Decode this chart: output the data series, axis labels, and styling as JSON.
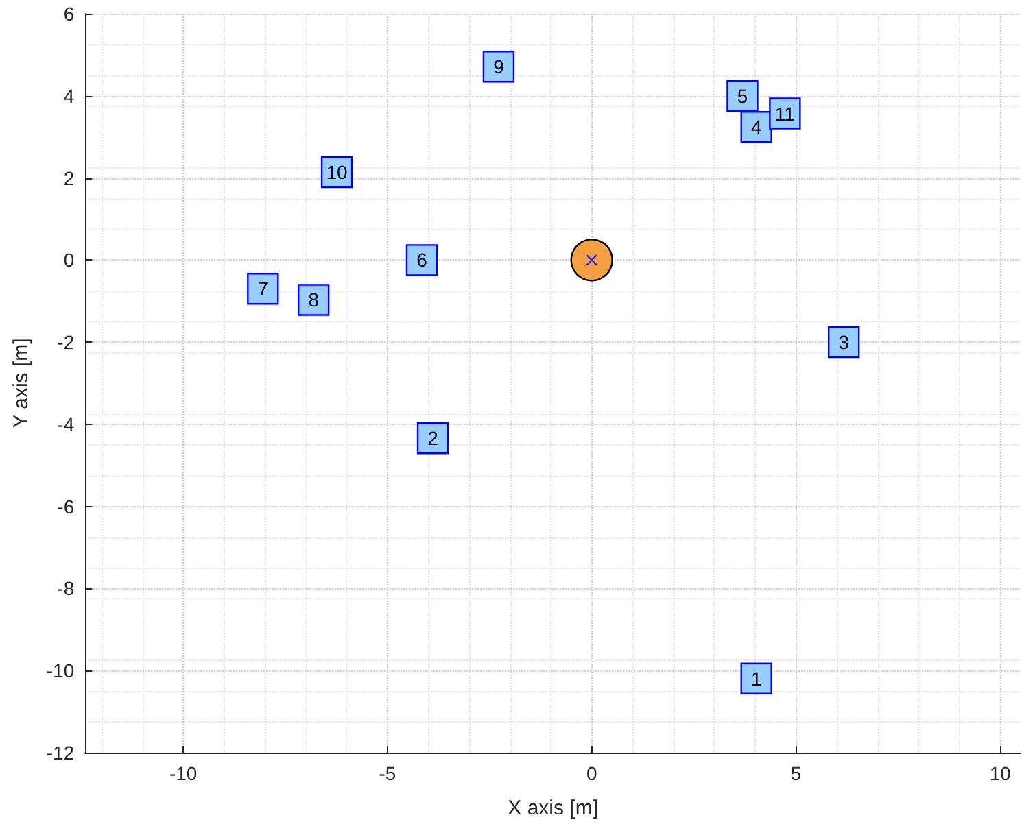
{
  "chart_data": {
    "type": "scatter",
    "xlabel": "X axis [m]",
    "ylabel": "Y axis [m]",
    "xlim": [
      -12.4,
      10.5
    ],
    "xticks": [
      -10,
      -5,
      0,
      5,
      10
    ],
    "ylim": [
      -12,
      6
    ],
    "yticks": [
      -12,
      -10,
      -8,
      -6,
      -4,
      -2,
      0,
      2,
      4,
      6
    ],
    "grid": true,
    "series": [
      {
        "color": "#99ccff",
        "marker": "square",
        "x": [
          4.03,
          -3.89,
          6.17,
          4.03,
          3.69,
          -4.16,
          -8.05,
          -6.81,
          -2.28,
          -6.24,
          4.73
        ],
        "values": [
          -10.19,
          -4.34,
          -2.0,
          3.24,
          4.0,
          0.0,
          -0.7,
          -0.97,
          4.71,
          2.14,
          3.57
        ]
      },
      {
        "color": "#f5a042",
        "marker": "circle",
        "x": [
          0
        ],
        "values": [
          0
        ]
      },
      {
        "color": "#0000ff",
        "marker": "cross",
        "x": [
          0
        ],
        "values": [
          0
        ]
      }
    ],
    "annotations": [
      {
        "text": "1",
        "x": 4.03,
        "y": -10.19
      },
      {
        "text": "2",
        "x": -3.89,
        "y": -4.34
      },
      {
        "text": "3",
        "x": 6.17,
        "y": -2.0
      },
      {
        "text": "4",
        "x": 4.03,
        "y": 3.24
      },
      {
        "text": "5",
        "x": 3.69,
        "y": 4.0
      },
      {
        "text": "6",
        "x": -4.16,
        "y": 0.0
      },
      {
        "text": "7",
        "x": -8.05,
        "y": -0.7
      },
      {
        "text": "8",
        "x": -6.81,
        "y": -0.97
      },
      {
        "text": "9",
        "x": -2.28,
        "y": 4.71
      },
      {
        "text": "10",
        "x": -6.24,
        "y": 2.14
      },
      {
        "text": "11",
        "x": 4.73,
        "y": 3.57
      }
    ]
  }
}
